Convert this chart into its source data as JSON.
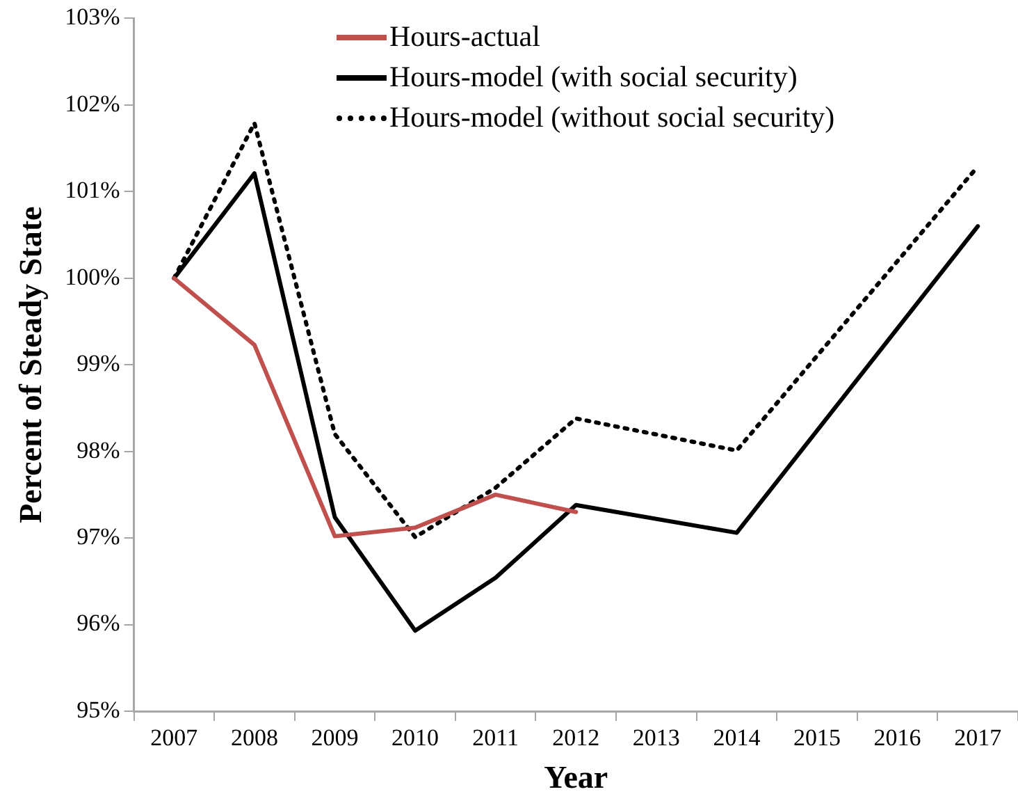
{
  "chart_data": {
    "type": "line",
    "xlabel": "Year",
    "ylabel": "Percent of Steady State",
    "categories": [
      "2007",
      "2008",
      "2009",
      "2010",
      "2011",
      "2012",
      "2013",
      "2014",
      "2015",
      "2016",
      "2017"
    ],
    "ylim": [
      95,
      103
    ],
    "yticks": [
      {
        "value": 95,
        "label": "95%"
      },
      {
        "value": 96,
        "label": "96%"
      },
      {
        "value": 97,
        "label": "97%"
      },
      {
        "value": 98,
        "label": "98%"
      },
      {
        "value": 99,
        "label": "99%"
      },
      {
        "value": 100,
        "label": "100%"
      },
      {
        "value": 101,
        "label": "101%"
      },
      {
        "value": 102,
        "label": "102%"
      },
      {
        "value": 103,
        "label": "103%"
      }
    ],
    "grid": false,
    "legend": "top",
    "marker": "none",
    "series": [
      {
        "name": "Hours-actual",
        "color": "#c0504d",
        "line_style": "solid",
        "values": [
          100,
          99.23,
          97.02,
          97.12,
          97.5,
          97.3,
          null,
          null,
          null,
          null,
          null
        ]
      },
      {
        "name": "Hours-model (with social security)",
        "color": "#000000",
        "line_style": "solid",
        "values": [
          100,
          101.21,
          97.24,
          95.93,
          96.54,
          97.38,
          null,
          97.06,
          null,
          null,
          100.6
        ]
      },
      {
        "name": "Hours-model (without social security)",
        "color": "#000000",
        "line_style": "dotted",
        "values": [
          100,
          101.79,
          98.2,
          97.01,
          97.58,
          98.38,
          null,
          98.01,
          null,
          null,
          101.29
        ]
      }
    ]
  }
}
